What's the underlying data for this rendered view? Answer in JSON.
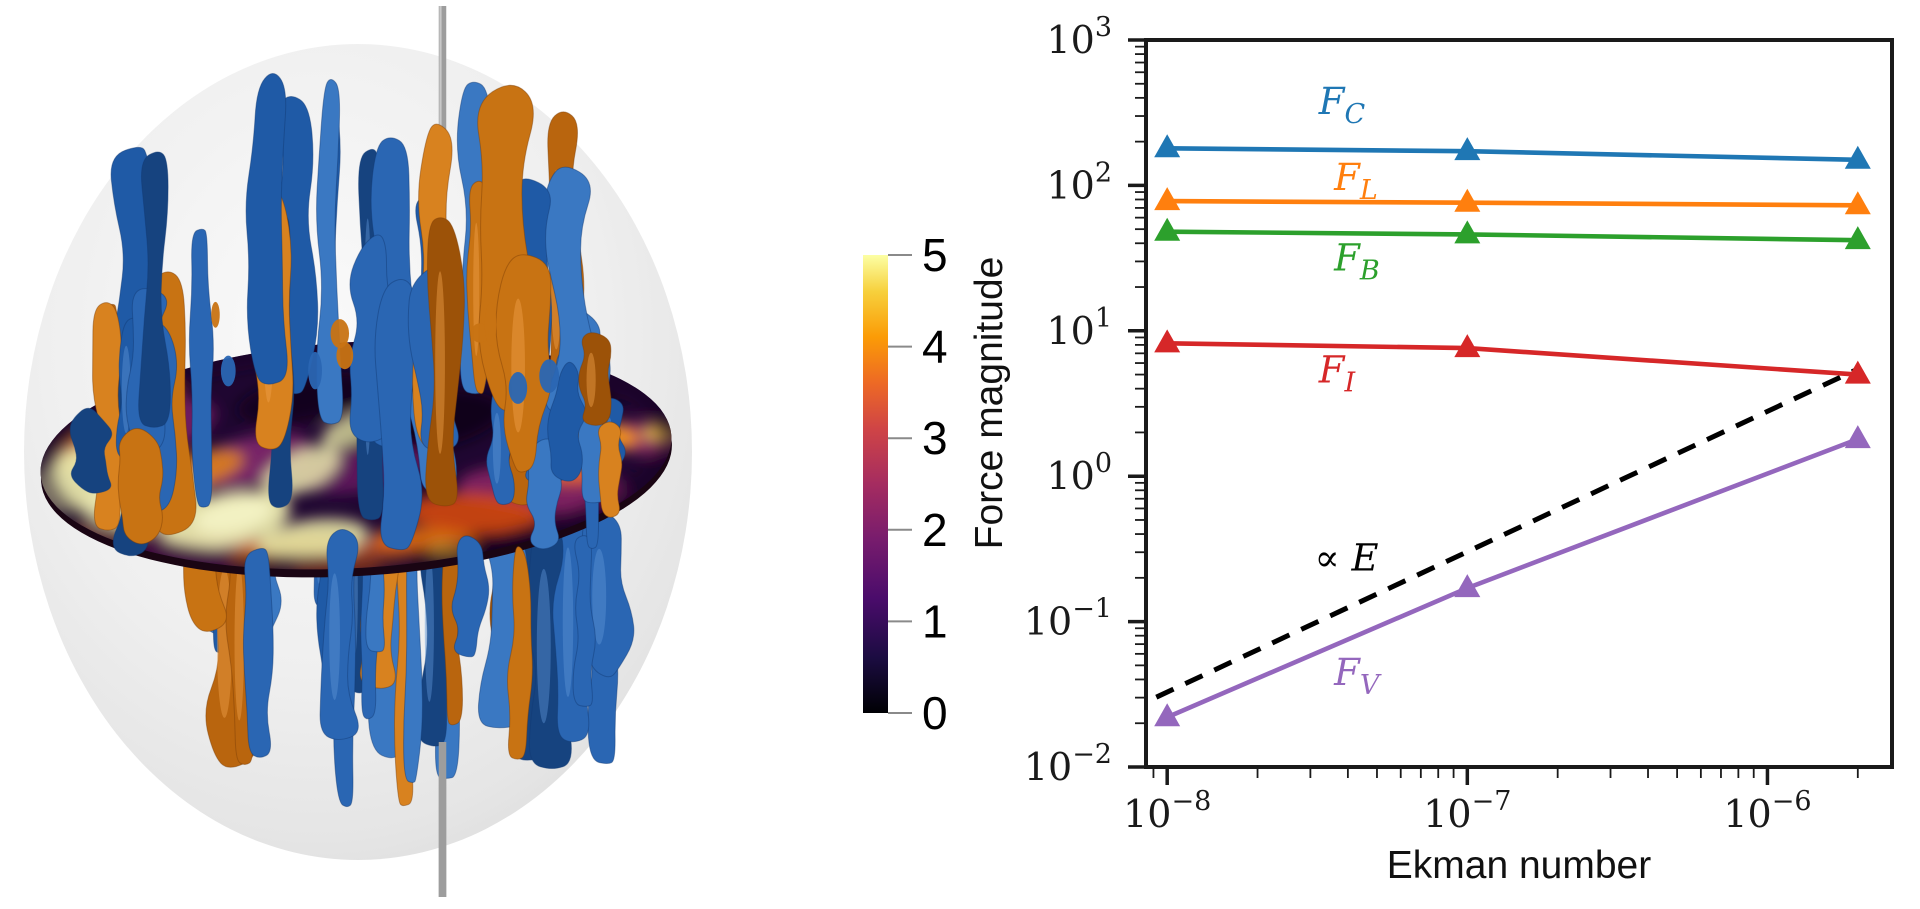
{
  "left_panel": {
    "colorbar": {
      "tick_labels": [
        "5",
        "4",
        "3",
        "2",
        "1",
        "0"
      ],
      "colormap_gradient": [
        "#000004",
        "#1b0c41",
        "#4a0c6b",
        "#781c6d",
        "#a52c60",
        "#cf4446",
        "#ed6925",
        "#fb9b06",
        "#f7d03c",
        "#fcffa4"
      ]
    },
    "isosurface_colors": {
      "blue_shades": [
        "#1f5aa6",
        "#2a66b3",
        "#3a78c2",
        "#16437f"
      ],
      "blue_highlight": "#5b93d4",
      "orange_shades": [
        "#b9650e",
        "#c87313",
        "#d8821f",
        "#9c5208"
      ],
      "orange_highlight": "#efa04a"
    },
    "sphere_color": "#ececec",
    "rod_color": "#9d9d9d"
  },
  "chart_data": {
    "type": "line",
    "title": "",
    "xlabel": "Ekman number",
    "ylabel": "Force magnitude",
    "x_scale": "log",
    "y_scale": "log",
    "xlim": [
      8.5e-09,
      2.6e-06
    ],
    "ylim": [
      0.01,
      1000
    ],
    "x_tick_exponents": [
      -8,
      -7,
      -6
    ],
    "y_tick_exponents": [
      3,
      2,
      1,
      0,
      -1,
      -2
    ],
    "grid": false,
    "legend": "inline-labels",
    "x": [
      1e-08,
      1e-07,
      2e-06
    ],
    "series": [
      {
        "name": "F_C",
        "label_main": "F",
        "label_sub": "C",
        "color": "#1f77b4",
        "marker": "triangle_up",
        "values": [
          180,
          172,
          150
        ],
        "label_pos": {
          "x": 3.2e-08,
          "y": 310
        }
      },
      {
        "name": "F_L",
        "label_main": "F",
        "label_sub": "L",
        "color": "#ff7f0e",
        "marker": "triangle_up",
        "values": [
          78,
          76,
          73
        ],
        "label_pos": {
          "x": 3.6e-08,
          "y": 93
        }
      },
      {
        "name": "F_B",
        "label_main": "F",
        "label_sub": "B",
        "color": "#2ca02c",
        "marker": "triangle_up",
        "values": [
          48,
          46,
          42
        ],
        "label_pos": {
          "x": 3.6e-08,
          "y": 26
        }
      },
      {
        "name": "F_I",
        "label_main": "F",
        "label_sub": "I",
        "color": "#d62728",
        "marker": "triangle_up",
        "values": [
          8.2,
          7.6,
          5.0
        ],
        "label_pos": {
          "x": 3.2e-08,
          "y": 4.4
        }
      },
      {
        "name": "F_V",
        "label_main": "F",
        "label_sub": "V",
        "color": "#9467bd",
        "marker": "triangle_up",
        "values": [
          0.022,
          0.17,
          1.8
        ],
        "label_pos": {
          "x": 3.6e-08,
          "y": 0.0366
        }
      }
    ],
    "reference_line": {
      "label": "∝ E",
      "style": "dashed",
      "color": "#000000",
      "x": [
        9.2e-09,
        2e-06
      ],
      "values": [
        0.0302,
        5.45
      ],
      "label_pos": {
        "x": 3.1e-08,
        "y": 0.225
      }
    }
  }
}
